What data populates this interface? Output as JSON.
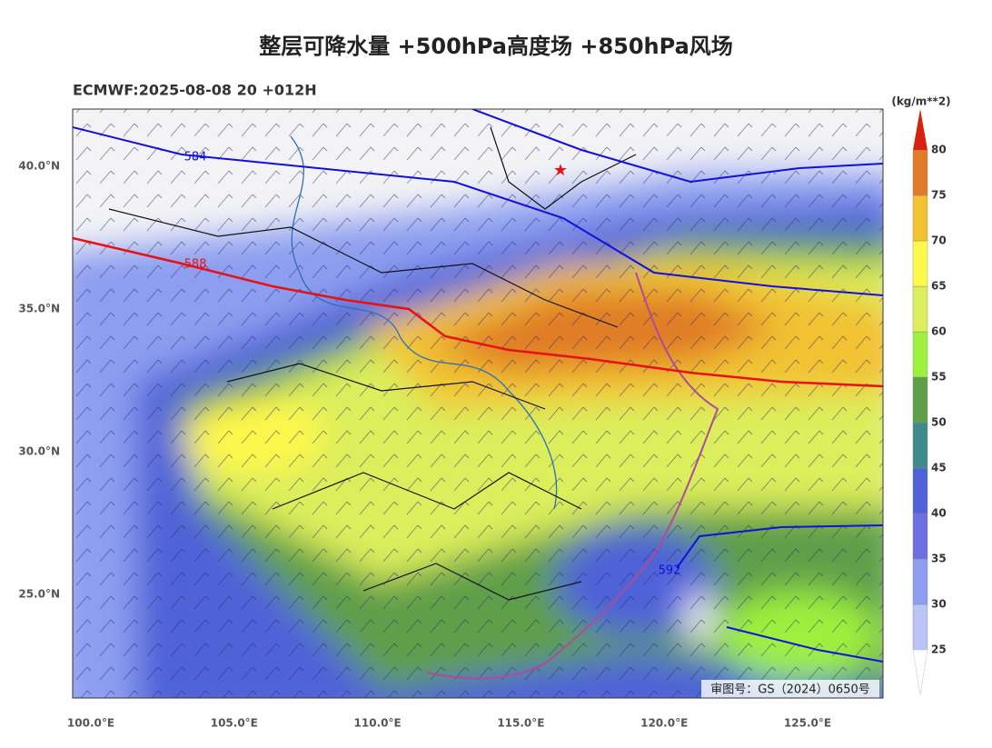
{
  "title": "整层可降水量 +500hPa高度场 +850hPa风场",
  "subtitle": "ECMWF:2025-08-08 20 +012H",
  "colorbar": {
    "unit": "(kg/m**2)",
    "ticks": [
      25,
      30,
      35,
      40,
      45,
      50,
      55,
      60,
      65,
      70,
      75,
      80
    ],
    "colors": [
      "#b9c4f5",
      "#8d9ef0",
      "#6d6fe2",
      "#4f62d8",
      "#3f8a8c",
      "#5f9f4a",
      "#9ef03e",
      "#dcee5c",
      "#fff84c",
      "#f2c230",
      "#e07b28"
    ],
    "over_color": "#d8200f",
    "under_color": "#ffffff"
  },
  "axes": {
    "x_labels": [
      "100.0°E",
      "105.0°E",
      "110.0°E",
      "115.0°E",
      "120.0°E",
      "125.0°E"
    ],
    "y_labels": [
      "40.0°N",
      "35.0°N",
      "30.0°N",
      "25.0°N"
    ]
  },
  "contours": [
    {
      "label": "584",
      "color": "#1010e0"
    },
    {
      "label": "588",
      "color": "#e81010"
    },
    {
      "label": "592",
      "color": "#1010e0"
    }
  ],
  "approval": "审图号：GS（2024）0650号"
}
